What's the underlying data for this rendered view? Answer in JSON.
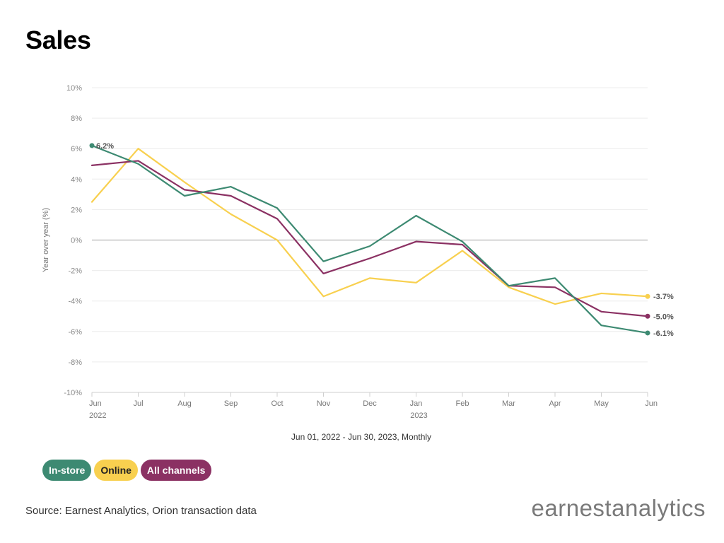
{
  "title": "Sales",
  "source": "Source: Earnest Analytics, Orion transaction data",
  "brand": {
    "part1": "earnest",
    "part2": "analytics"
  },
  "chart_data": {
    "type": "line",
    "title": "Sales",
    "ylabel": "Year over year (%)",
    "xlabel": "Jun 01, 2022 - Jun 30, 2023, Monthly",
    "ylim": [
      -10,
      10
    ],
    "yticks": [
      10,
      8,
      6,
      4,
      2,
      0,
      -2,
      -4,
      -6,
      -8,
      -10
    ],
    "ytick_labels": [
      "10%",
      "8%",
      "6%",
      "4%",
      "2%",
      "0%",
      "-2%",
      "-4%",
      "-6%",
      "-8%",
      "-10%"
    ],
    "categories": [
      "Jun",
      "Jul",
      "Aug",
      "Sep",
      "Oct",
      "Nov",
      "Dec",
      "Jan",
      "Feb",
      "Mar",
      "Apr",
      "May",
      "Jun"
    ],
    "year_labels": [
      {
        "index": 0,
        "label": "2022"
      },
      {
        "index": 7,
        "label": "2023"
      }
    ],
    "grid": true,
    "series": [
      {
        "name": "In-store",
        "color": "#3d8a72",
        "values": [
          6.2,
          5.0,
          2.9,
          3.5,
          2.1,
          -1.4,
          -0.4,
          1.6,
          -0.1,
          -3.0,
          -2.5,
          -5.6,
          -6.1
        ],
        "start_label": "6.2%",
        "end_label": "-6.1%"
      },
      {
        "name": "Online",
        "color": "#f8d04f",
        "values": [
          2.5,
          6.0,
          3.8,
          1.7,
          0.0,
          -3.7,
          -2.5,
          -2.8,
          -0.7,
          -3.1,
          -4.2,
          -3.5,
          -3.7
        ],
        "end_label": "-3.7%"
      },
      {
        "name": "All channels",
        "color": "#8b3163",
        "values": [
          4.9,
          5.2,
          3.3,
          2.9,
          1.4,
          -2.2,
          -1.2,
          -0.1,
          -0.3,
          -3.0,
          -3.1,
          -4.7,
          -5.0
        ],
        "end_label": "-5.0%"
      }
    ],
    "legend": [
      {
        "label": "In-store",
        "bg": "#3d8a72",
        "fg": "#ffffff"
      },
      {
        "label": "Online",
        "bg": "#f8d04f",
        "fg": "#222222"
      },
      {
        "label": "All channels",
        "bg": "#8b3163",
        "fg": "#ffffff"
      }
    ]
  }
}
